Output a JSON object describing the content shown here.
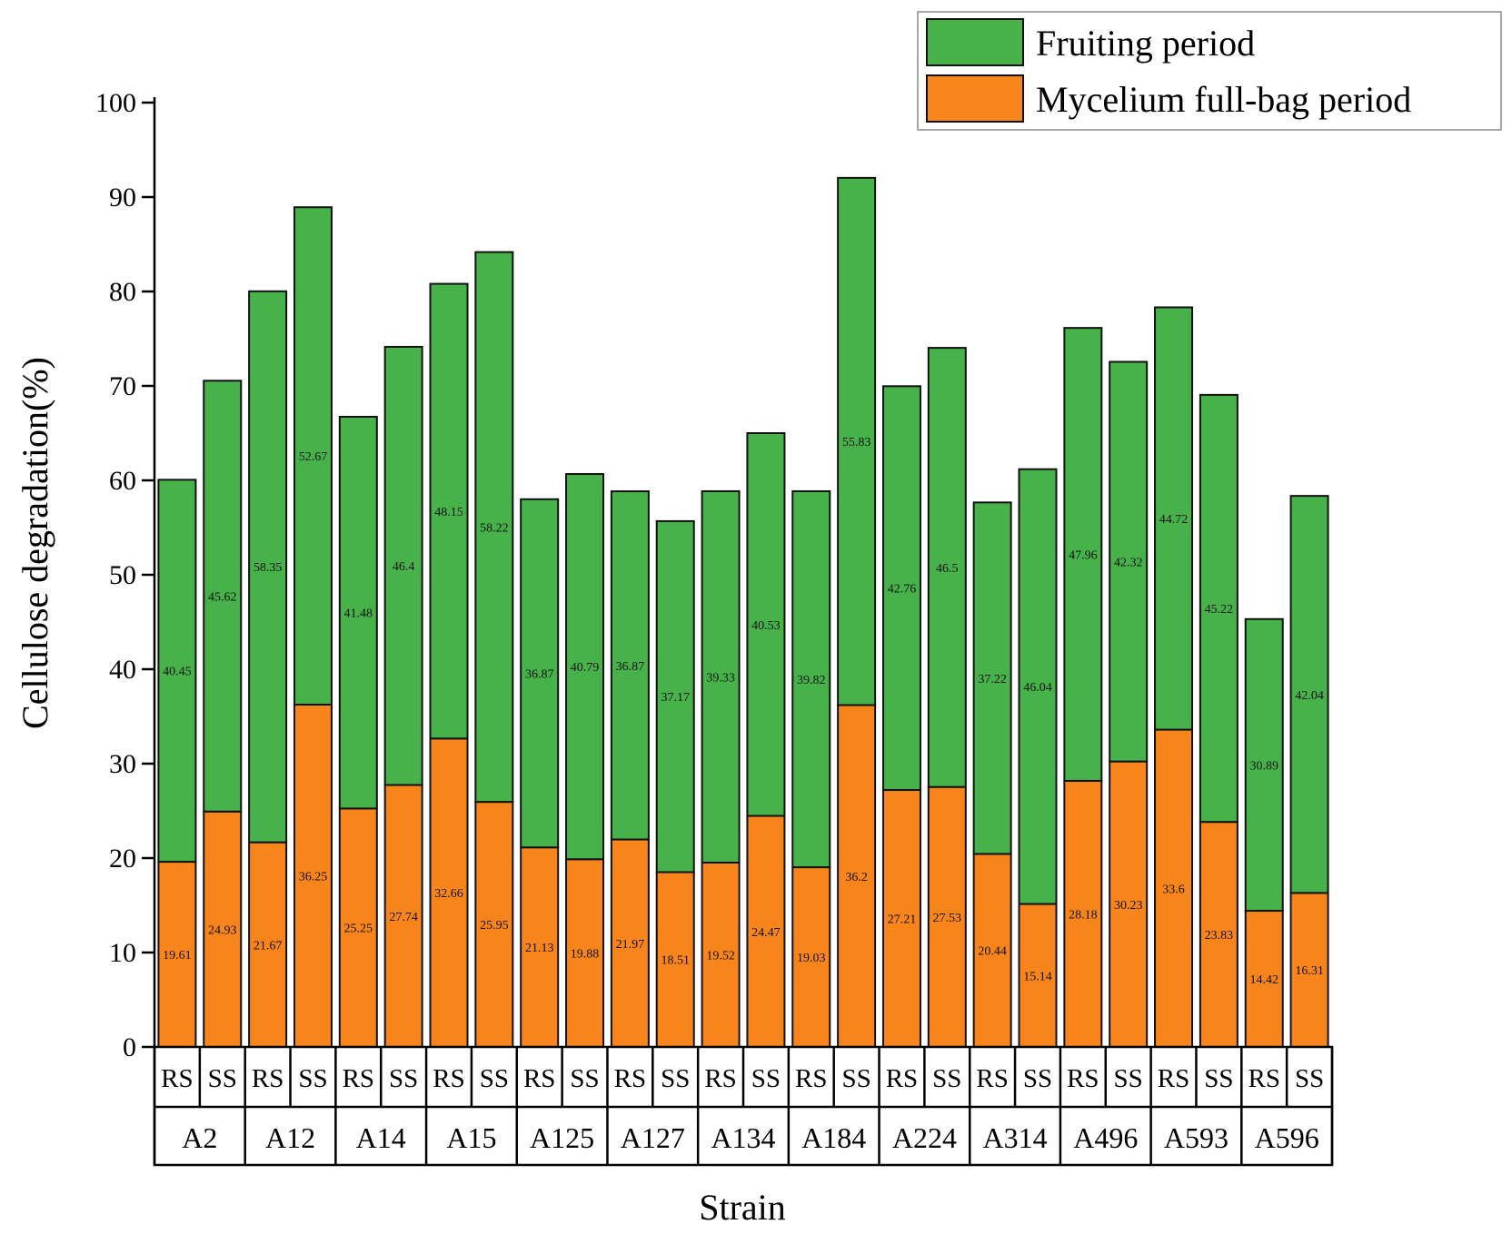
{
  "chart_data": {
    "type": "stacked-bar",
    "xlabel": "Strain",
    "ylabel": "Cellulose degradation(%)",
    "ylim": [
      0,
      100
    ],
    "yticks": [
      0,
      10,
      20,
      30,
      40,
      50,
      60,
      70,
      80,
      90,
      100
    ],
    "legend_position": "top-right",
    "groups": [
      "A2",
      "A12",
      "A14",
      "A15",
      "A125",
      "A127",
      "A134",
      "A184",
      "A224",
      "A314",
      "A496",
      "A593",
      "A596"
    ],
    "sub_categories": [
      "RS",
      "SS"
    ],
    "series": [
      {
        "name": "Mycelium full-bag period",
        "color": "#f7851b",
        "values": [
          19.61,
          24.93,
          21.67,
          36.25,
          25.25,
          27.74,
          32.66,
          25.95,
          21.13,
          19.88,
          21.97,
          18.51,
          19.52,
          24.47,
          19.03,
          36.2,
          27.21,
          27.53,
          20.44,
          15.14,
          28.18,
          30.23,
          33.6,
          23.83,
          14.42,
          16.31
        ]
      },
      {
        "name": "Fruiting period",
        "color": "#47b24a",
        "values": [
          40.45,
          45.62,
          58.35,
          52.67,
          41.48,
          46.4,
          48.15,
          58.22,
          36.87,
          40.79,
          36.87,
          37.17,
          39.33,
          40.53,
          39.82,
          55.83,
          42.76,
          46.5,
          37.22,
          46.04,
          47.96,
          42.32,
          44.72,
          45.22,
          30.89,
          42.04
        ]
      }
    ]
  }
}
